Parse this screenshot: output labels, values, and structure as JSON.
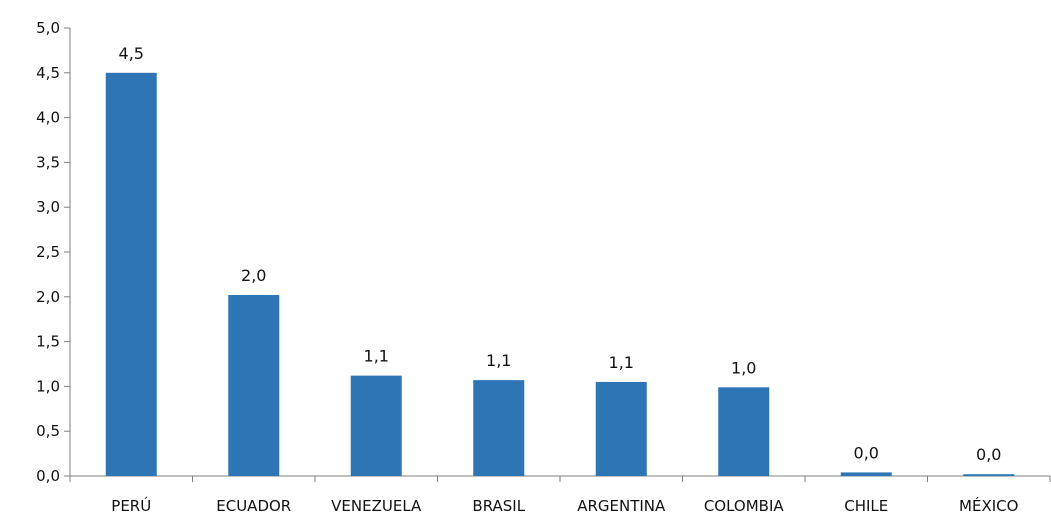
{
  "chart_data": {
    "type": "bar",
    "title": "",
    "xlabel": "",
    "ylabel": "",
    "categories": [
      "PERÚ",
      "ECUADOR",
      "VENEZUELA",
      "BRASIL",
      "ARGENTINA",
      "COLOMBIA",
      "CHILE",
      "MÉXICO"
    ],
    "values": [
      4.5,
      2.02,
      1.12,
      1.07,
      1.05,
      0.99,
      0.04,
      0.02
    ],
    "data_labels": [
      "4,5",
      "2,0",
      "1,1",
      "1,1",
      "1,1",
      "1,0",
      "0,0",
      "0,0"
    ],
    "ylim": [
      0,
      5
    ],
    "yticks": [
      "0,0",
      "0,5",
      "1,0",
      "1,5",
      "2,0",
      "2,5",
      "3,0",
      "3,5",
      "4,0",
      "4,5",
      "5,0"
    ],
    "grid": false,
    "legend": "none",
    "bar_color": "#2E75B6",
    "axis_color": "#7F7F7F"
  }
}
